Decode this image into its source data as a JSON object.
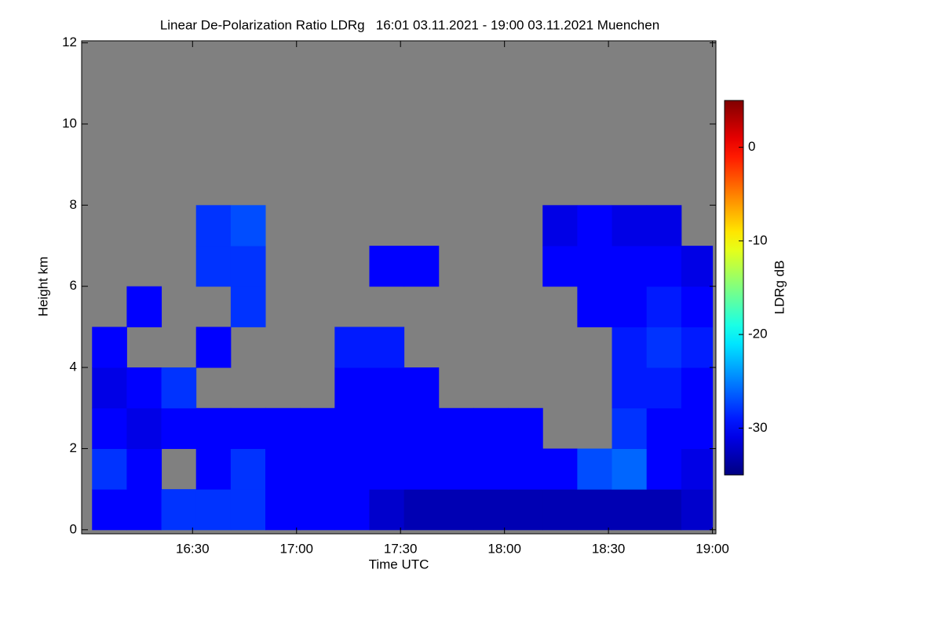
{
  "chart_data": {
    "type": "heatmap",
    "title": "Linear De-Polarization Ratio LDRg   16:01 03.11.2021 - 19:00 03.11.2021 Muenchen",
    "x_label": "Time UTC",
    "y_label": "Height km",
    "colorbar_label": "LDRg dB",
    "xlim": [
      958,
      1141
    ],
    "xticks": [
      {
        "value": 990,
        "label": "16:30"
      },
      {
        "value": 1020,
        "label": "17:00"
      },
      {
        "value": 1050,
        "label": "17:30"
      },
      {
        "value": 1080,
        "label": "18:00"
      },
      {
        "value": 1110,
        "label": "18:30"
      },
      {
        "value": 1140,
        "label": "19:00"
      }
    ],
    "ylim": [
      -0.1,
      12.05
    ],
    "yticks": [
      0,
      2,
      4,
      6,
      8,
      10,
      12
    ],
    "clim": [
      -35,
      5
    ],
    "cticks": [
      0,
      -10,
      -20,
      -30
    ],
    "colormap": "jet",
    "background": "#808080",
    "x_bins": [
      961,
      971,
      981,
      991,
      1001,
      1011,
      1021,
      1031,
      1041,
      1051,
      1061,
      1071,
      1081,
      1091,
      1101,
      1111,
      1121,
      1131,
      1140
    ],
    "y_bins": [
      0,
      1,
      2,
      3,
      4,
      5,
      6,
      7,
      8,
      9,
      10,
      11,
      12
    ],
    "values": [
      [
        -30,
        -30,
        -28,
        -28,
        -28,
        -30,
        -30,
        -30,
        -32,
        -33,
        -33,
        -33,
        -33,
        -33,
        -33,
        -33,
        -33,
        -32
      ],
      [
        -28,
        -30,
        null,
        -30,
        -28,
        -30,
        -30,
        -30,
        -30,
        -30,
        -30,
        -30,
        -30,
        -30,
        -27,
        -26,
        -30,
        -31
      ],
      [
        -30,
        -31,
        -30,
        -30,
        -30,
        -30,
        -30,
        -30,
        -30,
        -30,
        -30,
        -30,
        -30,
        null,
        null,
        -28,
        -30,
        -30
      ],
      [
        -31,
        -30,
        -28,
        null,
        null,
        null,
        null,
        -30,
        -30,
        -30,
        null,
        null,
        null,
        null,
        null,
        -29,
        -29,
        -30
      ],
      [
        -30,
        null,
        null,
        -30,
        null,
        null,
        null,
        -29,
        -29,
        null,
        null,
        null,
        null,
        null,
        null,
        -29,
        -28,
        -29
      ],
      [
        null,
        -30,
        null,
        null,
        -28,
        null,
        null,
        null,
        null,
        null,
        null,
        null,
        null,
        null,
        -30,
        -30,
        -29,
        -30
      ],
      [
        null,
        null,
        null,
        -28,
        -28,
        null,
        null,
        null,
        -30,
        -30,
        null,
        null,
        null,
        -30,
        -30,
        -30,
        -30,
        -31
      ],
      [
        null,
        null,
        null,
        -28,
        -27,
        null,
        null,
        null,
        null,
        null,
        null,
        null,
        null,
        -31,
        -30,
        -31,
        -31,
        null
      ],
      [
        null,
        null,
        null,
        null,
        null,
        null,
        null,
        null,
        null,
        null,
        null,
        null,
        null,
        null,
        null,
        null,
        null,
        null
      ],
      [
        null,
        null,
        null,
        null,
        null,
        null,
        null,
        null,
        null,
        null,
        null,
        null,
        null,
        null,
        null,
        null,
        null,
        null
      ],
      [
        null,
        null,
        null,
        null,
        null,
        null,
        null,
        null,
        null,
        null,
        null,
        null,
        null,
        null,
        null,
        null,
        null,
        null
      ],
      [
        null,
        null,
        null,
        null,
        null,
        null,
        null,
        null,
        null,
        null,
        null,
        null,
        null,
        null,
        null,
        null,
        null,
        null
      ]
    ]
  }
}
